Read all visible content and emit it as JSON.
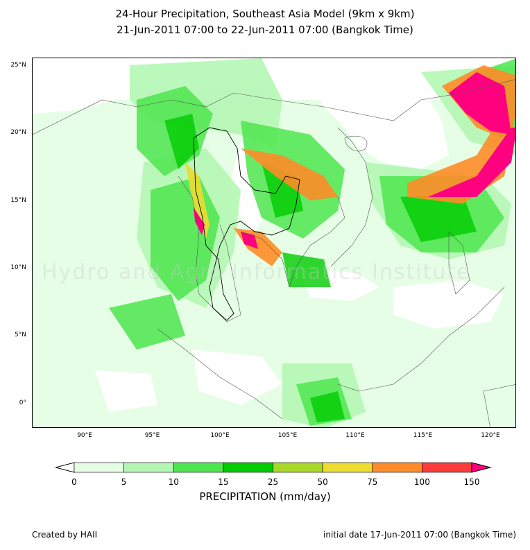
{
  "header": {
    "title_line1": "24-Hour Precipitation, Southeast Asia Model (9km x 9km)",
    "title_line2": "21-Jun-2011 07:00 to 22-Jun-2011 07:00 (Bangkok Time)"
  },
  "map": {
    "latitude_labels": [
      "25°N",
      "20°N",
      "15°N",
      "10°N",
      "5°N",
      "0°"
    ],
    "longitude_labels": [
      "90°E",
      "95°E",
      "100°E",
      "105°E",
      "110°E",
      "115°E",
      "120°E"
    ],
    "extent": {
      "lon_min": 86.1,
      "lon_max": 121.9,
      "lat_min": -1.8,
      "lat_max": 25.6
    },
    "watermark": "Hydro and Agro Informatics Institute"
  },
  "colorbar": {
    "title": "PRECIPITATION (mm/day)",
    "tick_labels": [
      "0",
      "5",
      "10",
      "15",
      "25",
      "50",
      "75",
      "100",
      "150"
    ],
    "colors": [
      "#e6fee6",
      "#b4f7b4",
      "#4ee64e",
      "#00cc00",
      "#a8d828",
      "#ecdc32",
      "#ff8c28",
      "#ff3c3c"
    ],
    "under_color": "#ffffff",
    "over_color": "#ff007f"
  },
  "footer": {
    "created_by": "Created by HAII",
    "initial_date": "initial date 17-Jun-2011 07:00 (Bangkok Time)"
  }
}
